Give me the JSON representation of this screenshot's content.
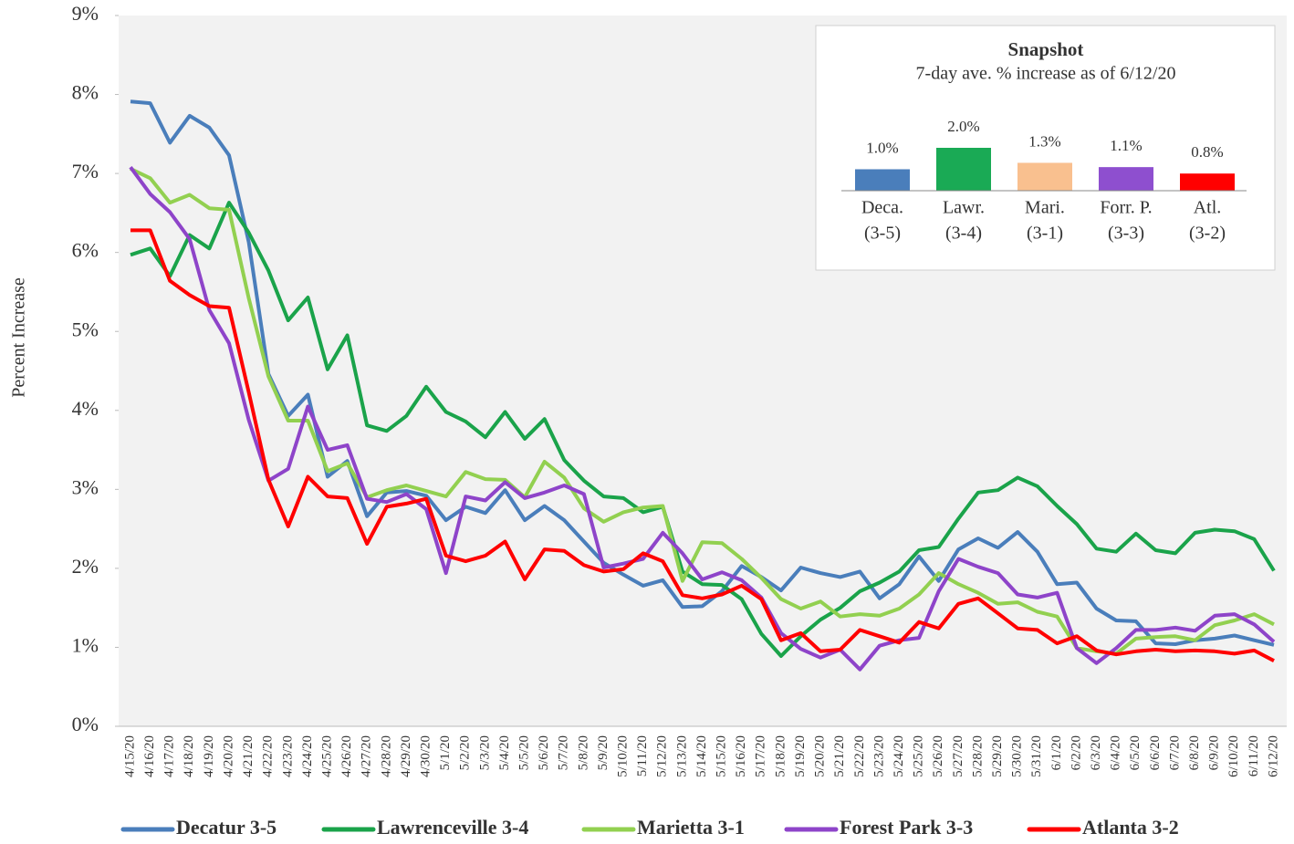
{
  "chart_data": [
    {
      "type": "line",
      "y_label": "Percent Increase",
      "categories": [
        "4/15/20",
        "4/16/20",
        "4/17/20",
        "4/18/20",
        "4/19/20",
        "4/20/20",
        "4/21/20",
        "4/22/20",
        "4/23/20",
        "4/24/20",
        "4/25/20",
        "4/26/20",
        "4/27/20",
        "4/28/20",
        "4/29/20",
        "4/30/20",
        "5/1/20",
        "5/2/20",
        "5/3/20",
        "5/4/20",
        "5/5/20",
        "5/6/20",
        "5/7/20",
        "5/8/20",
        "5/9/20",
        "5/10/20",
        "5/11/20",
        "5/12/20",
        "5/13/20",
        "5/14/20",
        "5/15/20",
        "5/16/20",
        "5/17/20",
        "5/18/20",
        "5/19/20",
        "5/20/20",
        "5/21/20",
        "5/22/20",
        "5/23/20",
        "5/24/20",
        "5/25/20",
        "5/26/20",
        "5/27/20",
        "5/28/20",
        "5/29/20",
        "5/30/20",
        "5/31/20",
        "6/1/20",
        "6/2/20",
        "6/3/20",
        "6/4/20",
        "6/5/20",
        "6/6/20",
        "6/7/20",
        "6/8/20",
        "6/9/20",
        "6/10/20",
        "6/11/20",
        "6/12/20"
      ],
      "series": [
        {
          "name": "Decatur 3-5",
          "color": "#4a7ebb",
          "values": [
            7.91,
            7.89,
            7.39,
            7.73,
            7.58,
            7.23,
            6.13,
            4.46,
            3.93,
            4.2,
            3.16,
            3.36,
            2.66,
            2.96,
            2.98,
            2.92,
            2.61,
            2.78,
            2.7,
            2.99,
            2.61,
            2.79,
            2.61,
            2.34,
            2.07,
            1.92,
            1.78,
            1.85,
            1.51,
            1.52,
            1.71,
            2.03,
            1.89,
            1.72,
            2.01,
            1.94,
            1.89,
            1.96,
            1.62,
            1.8,
            2.15,
            1.84,
            2.24,
            2.38,
            2.26,
            2.46,
            2.21,
            1.8,
            1.82,
            1.49,
            1.34,
            1.33,
            1.05,
            1.04,
            1.09,
            1.11,
            1.15,
            1.09,
            1.03
          ]
        },
        {
          "name": "Lawrenceville 3-4",
          "color": "#1aa34a",
          "values": [
            5.97,
            6.05,
            5.7,
            6.22,
            6.05,
            6.63,
            6.25,
            5.77,
            5.14,
            5.43,
            4.52,
            4.95,
            3.81,
            3.74,
            3.93,
            4.3,
            3.98,
            3.86,
            3.66,
            3.98,
            3.64,
            3.89,
            3.37,
            3.11,
            2.91,
            2.89,
            2.71,
            2.78,
            1.96,
            1.8,
            1.79,
            1.61,
            1.17,
            0.89,
            1.14,
            1.35,
            1.5,
            1.71,
            1.82,
            1.96,
            2.23,
            2.27,
            2.63,
            2.96,
            2.99,
            3.15,
            3.04,
            2.79,
            2.56,
            2.25,
            2.21,
            2.44,
            2.23,
            2.19,
            2.45,
            2.49,
            2.47,
            2.37,
            1.97
          ]
        },
        {
          "name": "Marietta 3-1",
          "color": "#92d050",
          "values": [
            7.06,
            6.94,
            6.63,
            6.73,
            6.56,
            6.54,
            5.42,
            4.43,
            3.87,
            3.87,
            3.23,
            3.33,
            2.9,
            2.99,
            3.05,
            2.98,
            2.91,
            3.22,
            3.13,
            3.12,
            2.9,
            3.35,
            3.15,
            2.76,
            2.59,
            2.71,
            2.77,
            2.79,
            1.84,
            2.33,
            2.32,
            2.12,
            1.88,
            1.61,
            1.49,
            1.58,
            1.39,
            1.42,
            1.4,
            1.49,
            1.67,
            1.94,
            1.8,
            1.69,
            1.55,
            1.57,
            1.45,
            1.39,
            0.99,
            0.95,
            0.92,
            1.11,
            1.13,
            1.14,
            1.09,
            1.28,
            1.34,
            1.42,
            1.29
          ]
        },
        {
          "name": "Forest Park 3-3",
          "color": "#8e44c9",
          "values": [
            7.08,
            6.74,
            6.51,
            6.17,
            5.27,
            4.85,
            3.88,
            3.11,
            3.26,
            4.05,
            3.5,
            3.56,
            2.88,
            2.84,
            2.94,
            2.75,
            1.94,
            2.91,
            2.86,
            3.09,
            2.89,
            2.96,
            3.05,
            2.94,
            2.01,
            2.06,
            2.12,
            2.45,
            2.19,
            1.86,
            1.95,
            1.85,
            1.63,
            1.18,
            0.98,
            0.87,
            0.97,
            0.72,
            1.02,
            1.09,
            1.12,
            1.71,
            2.12,
            2.02,
            1.94,
            1.67,
            1.63,
            1.69,
            0.99,
            0.8,
            0.99,
            1.22,
            1.22,
            1.25,
            1.21,
            1.4,
            1.42,
            1.29,
            1.07
          ]
        },
        {
          "name": "Atlanta 3-2",
          "color": "#ff0000",
          "values": [
            6.28,
            6.28,
            5.64,
            5.46,
            5.32,
            5.3,
            4.23,
            3.12,
            2.53,
            3.16,
            2.91,
            2.89,
            2.31,
            2.78,
            2.82,
            2.88,
            2.16,
            2.09,
            2.16,
            2.34,
            1.86,
            2.24,
            2.22,
            2.04,
            1.96,
            1.99,
            2.19,
            2.09,
            1.66,
            1.62,
            1.67,
            1.78,
            1.61,
            1.09,
            1.18,
            0.95,
            0.97,
            1.22,
            1.14,
            1.06,
            1.32,
            1.24,
            1.55,
            1.62,
            1.43,
            1.24,
            1.22,
            1.05,
            1.14,
            0.96,
            0.91,
            0.95,
            0.97,
            0.95,
            0.96,
            0.95,
            0.92,
            0.96,
            0.83
          ]
        }
      ],
      "ylim": [
        0,
        9
      ],
      "yticks": [
        {
          "value": 0,
          "label": "0%"
        },
        {
          "value": 1,
          "label": "1%"
        },
        {
          "value": 2,
          "label": "2%"
        },
        {
          "value": 3,
          "label": "3%"
        },
        {
          "value": 4,
          "label": "4%"
        },
        {
          "value": 5,
          "label": "5%"
        },
        {
          "value": 6,
          "label": "6%"
        },
        {
          "value": 7,
          "label": "7%"
        },
        {
          "value": 8,
          "label": "8%"
        },
        {
          "value": 9,
          "label": "9%"
        }
      ],
      "legend": "bottom"
    },
    {
      "type": "bar",
      "title": "Snapshot",
      "subtitle": "7-day ave. % increase as of 6/12/20",
      "categories": [
        [
          "Deca.",
          "(3-5)"
        ],
        [
          "Lawr.",
          "(3-4)"
        ],
        [
          "Mari.",
          "(3-1)"
        ],
        [
          "Forr. P.",
          "(3-3)"
        ],
        [
          "Atl.",
          "(3-2)"
        ]
      ],
      "values": [
        1.0,
        2.0,
        1.3,
        1.1,
        0.8
      ],
      "value_labels": [
        "1.0%",
        "2.0%",
        "1.3%",
        "1.1%",
        "0.8%"
      ],
      "colors": [
        "#4a7ebb",
        "#1aaa55",
        "#f9c08f",
        "#8e4fcf",
        "#ff0000"
      ]
    }
  ]
}
